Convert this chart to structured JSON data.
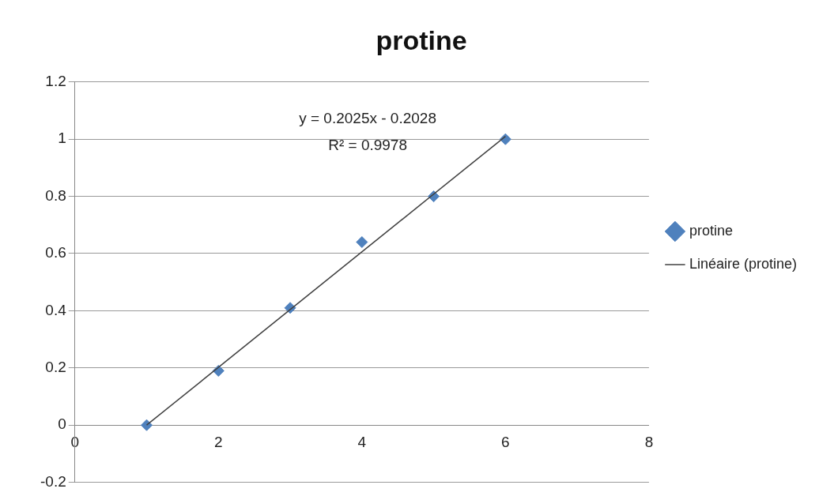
{
  "chart_data": {
    "type": "scatter",
    "title": "protine",
    "series": [
      {
        "name": "protine",
        "color": "#4f81bd",
        "x": [
          1,
          2,
          3,
          4,
          5,
          6
        ],
        "values": [
          0,
          0.19,
          0.41,
          0.64,
          0.8,
          1.0
        ],
        "marker": "diamond"
      },
      {
        "name": "Linéaire (protine)",
        "type": "line",
        "color": "#404040",
        "x": [
          1,
          6
        ],
        "values": [
          0,
          1.01
        ],
        "marker": "none",
        "line_style": "solid"
      }
    ],
    "xlim": [
      0,
      8
    ],
    "xticks": [
      0,
      2,
      4,
      6,
      8
    ],
    "ylim": [
      -0.2,
      1.2
    ],
    "yticks": [
      -0.2,
      0,
      0.2,
      0.4,
      0.6,
      0.8,
      1,
      1.2
    ],
    "grid": "y",
    "legend": "right",
    "annotations": [
      "y = 0.2025x - 0.2028",
      "R² = 0.9978"
    ]
  }
}
